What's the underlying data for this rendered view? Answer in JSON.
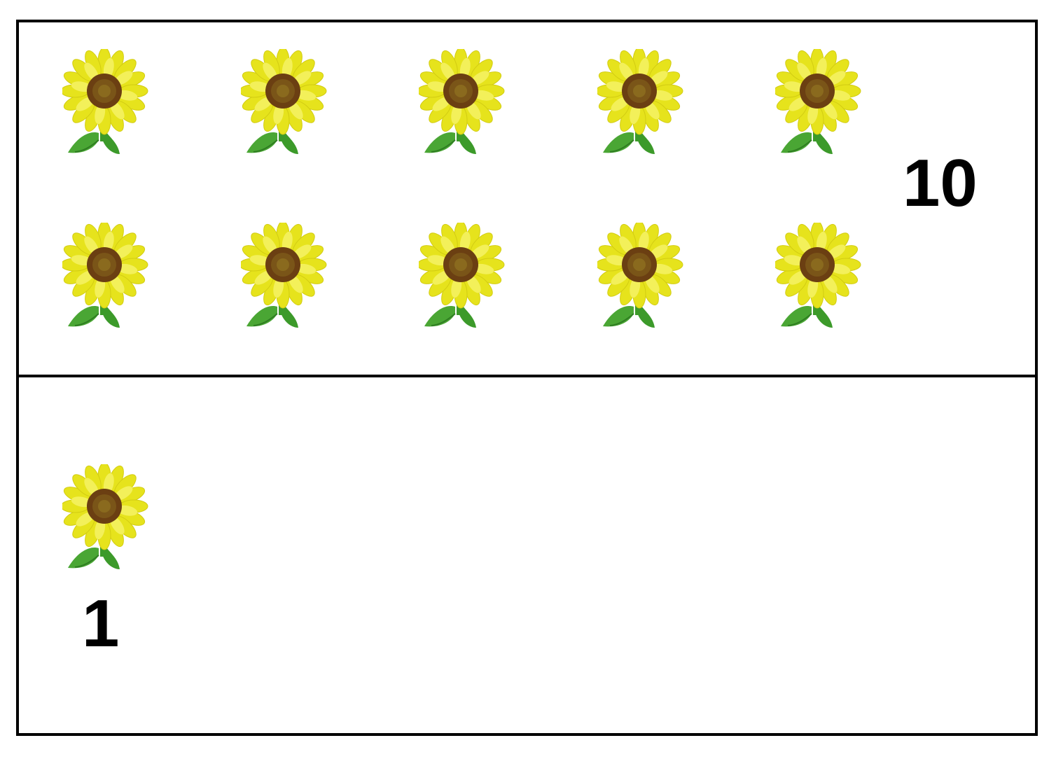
{
  "tens_group": {
    "count_label": "10",
    "flower_count": 10,
    "flower_icon": "sunflower-icon"
  },
  "ones_group": {
    "count_label": "1",
    "flower_count": 1,
    "flower_icon": "sunflower-icon"
  },
  "colors": {
    "petal": "#e6e31c",
    "petal_light": "#f3f05a",
    "center": "#6b3f12",
    "center_inner": "#8a6a1e",
    "leaf": "#3c9a2a",
    "border": "#000000"
  }
}
